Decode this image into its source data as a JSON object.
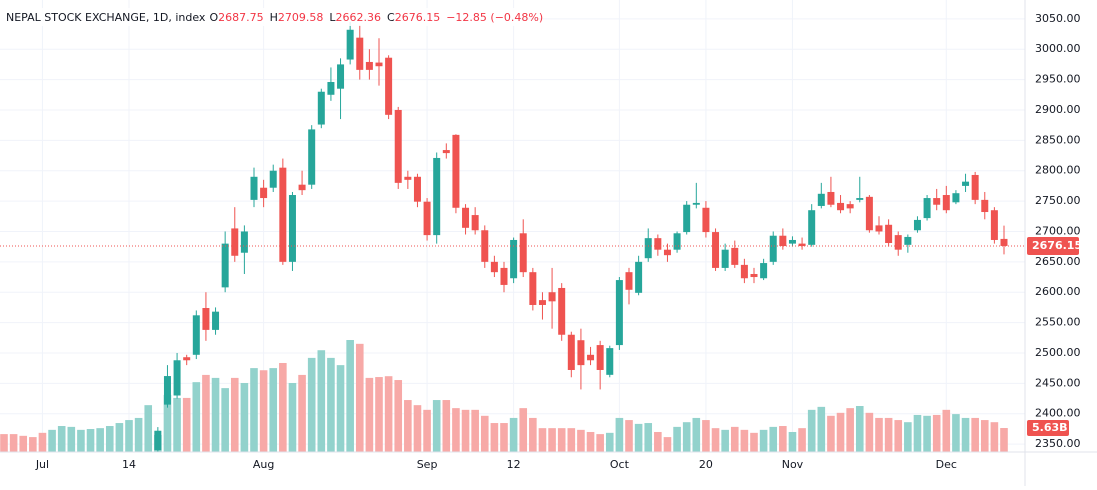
{
  "chart_data": {
    "type": "candlestick",
    "title": "NEPAL STOCK EXCHANGE, 1D, index",
    "ohlc_letters": [
      "O",
      "H",
      "L",
      "C"
    ],
    "change": {
      "value": -12.85,
      "label": "−12.85 (−0.48%)"
    },
    "categories": [
      null,
      null,
      null,
      null,
      "Jul",
      null,
      null,
      null,
      null,
      null,
      null,
      null,
      null,
      "14",
      null,
      null,
      null,
      null,
      null,
      null,
      null,
      null,
      null,
      null,
      null,
      null,
      null,
      "Aug",
      null,
      null,
      null,
      null,
      null,
      null,
      null,
      null,
      null,
      null,
      null,
      null,
      null,
      null,
      null,
      null,
      "Sep",
      null,
      null,
      null,
      null,
      null,
      null,
      null,
      null,
      "12",
      null,
      null,
      null,
      null,
      null,
      null,
      null,
      null,
      null,
      null,
      "Oct",
      null,
      null,
      null,
      null,
      null,
      null,
      null,
      null,
      "20",
      null,
      null,
      null,
      null,
      null,
      null,
      null,
      null,
      "Nov",
      null,
      null,
      null,
      null,
      null,
      null,
      null,
      null,
      null,
      null,
      null,
      null,
      null,
      null,
      null,
      "Dec",
      null,
      null,
      null,
      null,
      null,
      null
    ],
    "open": [
      null,
      null,
      null,
      null,
      null,
      null,
      null,
      null,
      null,
      null,
      null,
      null,
      null,
      null,
      null,
      null,
      2340,
      2415,
      2430,
      2493,
      2497,
      2574,
      2538,
      2608,
      2705,
      2665,
      2752,
      2772,
      2772,
      2805,
      2650,
      2777,
      2777,
      2876,
      2925,
      2935,
      2983,
      3019,
      2979,
      2978,
      2986,
      2900,
      2790,
      2790,
      2749,
      2694,
      2834,
      2859,
      2739,
      2727,
      2702,
      2650,
      2640,
      2623,
      2697,
      2633,
      2587,
      2600,
      2607,
      2530,
      2521,
      2497,
      2513,
      2464,
      2513,
      2633,
      2599,
      2656,
      2689,
      2670,
      2670,
      2699,
      2744,
      2739,
      2699,
      2640,
      2673,
      2645,
      2630,
      2623,
      2650,
      2693,
      2680,
      2680,
      2678,
      2742,
      2765,
      2747,
      2745,
      2752,
      2757,
      2710,
      2711,
      2694,
      2678,
      2702,
      2722,
      2755,
      2760,
      2748,
      2775,
      2793,
      2752,
      2735,
      2687.75
    ],
    "high": [
      null,
      null,
      null,
      null,
      null,
      null,
      null,
      null,
      null,
      null,
      null,
      null,
      null,
      null,
      null,
      null,
      2378,
      2480,
      2500,
      2497,
      2570,
      2600,
      2575,
      2700,
      2740,
      2710,
      2805,
      2785,
      2810,
      2820,
      2765,
      2800,
      2875,
      2935,
      2970,
      2985,
      3045,
      3040,
      3000,
      3018,
      2990,
      2905,
      2800,
      2795,
      2755,
      2830,
      2845,
      2860,
      2745,
      2740,
      2710,
      2660,
      2650,
      2690,
      2720,
      2640,
      2600,
      2640,
      2615,
      2535,
      2540,
      2510,
      2520,
      2512,
      2625,
      2640,
      2660,
      2705,
      2695,
      2680,
      2700,
      2750,
      2780,
      2750,
      2705,
      2680,
      2685,
      2655,
      2640,
      2655,
      2700,
      2705,
      2692,
      2690,
      2745,
      2780,
      2790,
      2760,
      2750,
      2790,
      2760,
      2725,
      2720,
      2700,
      2695,
      2725,
      2760,
      2770,
      2775,
      2768,
      2795,
      2798,
      2765,
      2740,
      2709.58
    ],
    "low": [
      null,
      null,
      null,
      null,
      null,
      null,
      null,
      null,
      null,
      null,
      null,
      null,
      null,
      null,
      null,
      null,
      2320,
      2410,
      2425,
      2480,
      2490,
      2520,
      2530,
      2600,
      2650,
      2630,
      2740,
      2740,
      2765,
      2645,
      2635,
      2760,
      2770,
      2870,
      2915,
      2885,
      2975,
      2950,
      2950,
      2940,
      2885,
      2770,
      2770,
      2740,
      2685,
      2680,
      2820,
      2730,
      2695,
      2695,
      2640,
      2625,
      2600,
      2615,
      2625,
      2570,
      2555,
      2540,
      2520,
      2460,
      2440,
      2480,
      2440,
      2460,
      2505,
      2580,
      2595,
      2650,
      2660,
      2650,
      2665,
      2695,
      2738,
      2690,
      2635,
      2635,
      2640,
      2615,
      2615,
      2620,
      2645,
      2670,
      2675,
      2670,
      2675,
      2738,
      2740,
      2730,
      2730,
      2748,
      2698,
      2695,
      2675,
      2660,
      2665,
      2698,
      2718,
      2735,
      2730,
      2745,
      2765,
      2745,
      2720,
      2680,
      2662.36
    ],
    "close": [
      null,
      null,
      null,
      null,
      null,
      null,
      null,
      null,
      null,
      null,
      null,
      null,
      null,
      null,
      null,
      null,
      2372,
      2462,
      2488,
      2488,
      2562,
      2538,
      2568,
      2680,
      2660,
      2700,
      2790,
      2755,
      2800,
      2650,
      2760,
      2768,
      2868,
      2930,
      2946,
      2975,
      3032,
      2966,
      2966,
      2972,
      2892,
      2780,
      2785,
      2749,
      2694,
      2821,
      2829,
      2739,
      2706,
      2702,
      2650,
      2633,
      2612,
      2686,
      2633,
      2579,
      2579,
      2585,
      2530,
      2472,
      2480,
      2488,
      2472,
      2508,
      2620,
      2604,
      2650,
      2689,
      2670,
      2661,
      2697,
      2744,
      2747,
      2699,
      2640,
      2670,
      2645,
      2623,
      2625,
      2648,
      2693,
      2676,
      2686,
      2676,
      2735,
      2762,
      2744,
      2735,
      2738,
      2755,
      2702,
      2700,
      2681,
      2670,
      2691,
      2719,
      2755,
      2744,
      2735,
      2763,
      2782,
      2752,
      2732,
      2686,
      2676.15
    ],
    "volume": [
      4.2,
      4.2,
      3.8,
      3.5,
      4.5,
      5.2,
      6.1,
      5.9,
      5.2,
      5.4,
      5.6,
      6.1,
      6.8,
      7.5,
      8.0,
      11.0,
      4.0,
      13.4,
      12.7,
      12.7,
      16.4,
      18.1,
      17.4,
      15.0,
      17.4,
      16.2,
      19.7,
      19.2,
      19.7,
      20.9,
      16.2,
      18.1,
      22.1,
      23.9,
      22.1,
      20.4,
      26.3,
      25.4,
      17.4,
      17.6,
      17.8,
      16.9,
      12.2,
      11.0,
      9.9,
      12.2,
      12.2,
      10.3,
      9.9,
      9.9,
      8.5,
      6.8,
      6.8,
      8.0,
      10.3,
      8.0,
      5.6,
      5.6,
      5.6,
      5.6,
      5.2,
      4.7,
      4.2,
      4.5,
      8.0,
      7.5,
      6.6,
      6.8,
      4.7,
      3.5,
      5.9,
      7.0,
      8.0,
      7.5,
      5.6,
      5.2,
      5.9,
      5.2,
      4.5,
      5.2,
      5.9,
      6.1,
      4.7,
      5.6,
      9.9,
      10.6,
      8.5,
      9.2,
      10.3,
      10.8,
      9.2,
      8.0,
      8.0,
      7.5,
      7.0,
      8.7,
      8.5,
      8.7,
      9.9,
      8.9,
      8.0,
      8.0,
      7.5,
      7.0,
      5.63
    ],
    "last_volume_label": "5.63B",
    "volume_colors_before_candles": [
      "#f7a9a7",
      "#f7a9a7",
      "#f7a9a7",
      "#f7a9a7",
      "#f7a9a7",
      "#92d2cc",
      "#92d2cc",
      "#92d2cc",
      "#92d2cc",
      "#92d2cc",
      "#92d2cc",
      "#92d2cc",
      "#92d2cc",
      "#92d2cc",
      "#92d2cc",
      "#92d2cc"
    ],
    "up_color": "#26a69a",
    "down_color": "#ef5350",
    "up_volume_color": "#92d2cc",
    "down_volume_color": "#f7a9a7",
    "ylim": [
      2337,
      3081
    ],
    "yticks": [
      {
        "value": 2350,
        "label": "2350.00"
      },
      {
        "value": 2400,
        "label": "2400.00"
      },
      {
        "value": 2450,
        "label": "2450.00"
      },
      {
        "value": 2500,
        "label": "2500.00"
      },
      {
        "value": 2550,
        "label": "2550.00"
      },
      {
        "value": 2600,
        "label": "2600.00"
      },
      {
        "value": 2650,
        "label": "2650.00"
      },
      {
        "value": 2700,
        "label": "2700.00"
      },
      {
        "value": 2750,
        "label": "2750.00"
      },
      {
        "value": 2800,
        "label": "2800.00"
      },
      {
        "value": 2850,
        "label": "2850.00"
      },
      {
        "value": 2900,
        "label": "2900.00"
      },
      {
        "value": 2950,
        "label": "2950.00"
      },
      {
        "value": 3000,
        "label": "3000.00"
      },
      {
        "value": 3050,
        "label": "3050.00"
      }
    ],
    "grid": true
  }
}
